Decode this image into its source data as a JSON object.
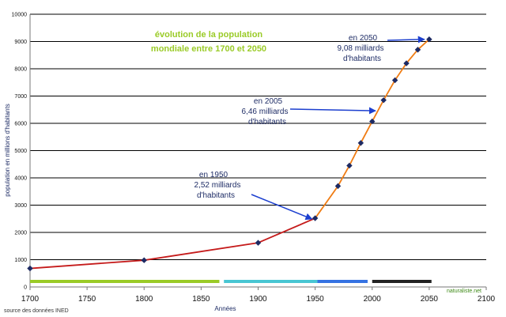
{
  "chart_data": {
    "type": "line",
    "title": "évolution de la population mondiale entre 1700 et 2050",
    "title_lines": [
      "évolution de la population",
      "mondiale entre 1700 et 2050"
    ],
    "xlabel": "Années",
    "ylabel": "population en millions d'habitants",
    "source": "source des données INED",
    "watermark": "naturaliste.net",
    "xlim": [
      1700,
      2100
    ],
    "ylim": [
      0,
      10000
    ],
    "x_ticks": [
      1700,
      1750,
      1800,
      1850,
      1900,
      1950,
      2000,
      2050,
      2100
    ],
    "y_ticks": [
      0,
      1000,
      2000,
      3000,
      4000,
      5000,
      6000,
      7000,
      8000,
      9000,
      10000
    ],
    "grid": true,
    "colors": {
      "historic_line": "#c51b1b",
      "modern_line": "#f07c13",
      "marker": "#1d2a63",
      "arrow": "#1c3fcf",
      "gridline": "#000000",
      "title": "#9acb27"
    },
    "series": [
      {
        "points": [
          {
            "x": 1700,
            "y": 680
          },
          {
            "x": 1800,
            "y": 980
          },
          {
            "x": 1900,
            "y": 1620
          },
          {
            "x": 1950,
            "y": 2520
          },
          {
            "x": 1970,
            "y": 3700
          },
          {
            "x": 1980,
            "y": 4450
          },
          {
            "x": 1990,
            "y": 5280
          },
          {
            "x": 2000,
            "y": 6070
          },
          {
            "x": 2010,
            "y": 6850
          },
          {
            "x": 2020,
            "y": 7580
          },
          {
            "x": 2030,
            "y": 8200
          },
          {
            "x": 2040,
            "y": 8700
          },
          {
            "x": 2050,
            "y": 9080
          }
        ]
      }
    ],
    "period_bars": [
      {
        "x0": 1700,
        "x1": 1866,
        "color": "#9acb27"
      },
      {
        "x0": 1870,
        "x1": 1952,
        "color": "#49c6d3"
      },
      {
        "x0": 1952,
        "x1": 1996,
        "color": "#3572e2"
      },
      {
        "x0": 2000,
        "x1": 2052,
        "color": "#222222"
      }
    ],
    "annotations": [
      {
        "lines": [
          "en 1950",
          "2,52 milliards",
          "d'habitants"
        ],
        "arrow_to": {
          "x": 1950,
          "y": 2520
        }
      },
      {
        "lines": [
          "en 2005",
          "6,46 milliards",
          "d'habitants"
        ],
        "arrow_to": {
          "x": 2005,
          "y": 6460
        }
      },
      {
        "lines": [
          "en 2050",
          "9,08 milliards",
          "d'habitants"
        ],
        "arrow_to": {
          "x": 2050,
          "y": 9080
        }
      }
    ]
  }
}
